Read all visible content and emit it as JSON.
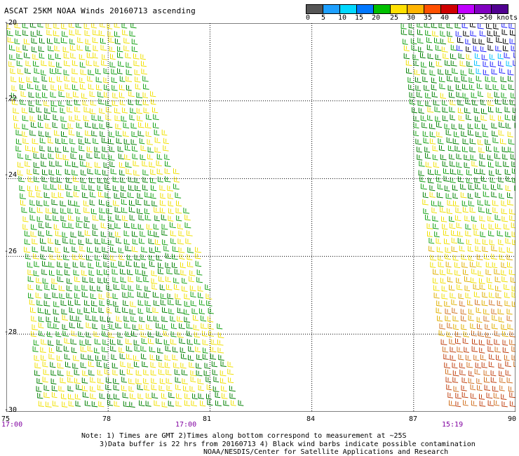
{
  "title": "ASCAT 25KM NOAA Winds 20160713 ascending",
  "legend": {
    "labels": [
      "0",
      "5",
      "10",
      "15",
      "20",
      "25",
      "30",
      "35",
      "40",
      "45",
      ">50 knots"
    ],
    "colors": [
      "#555555",
      "#1ea0ff",
      "#00d8ff",
      "#0078ff",
      "#00c000",
      "#ffe000",
      "#ffb400",
      "#ff5000",
      "#d00000",
      "#c000ff",
      "#8000c0",
      "#500090"
    ]
  },
  "map": {
    "lat_labels": [
      "-20",
      "-22",
      "-24",
      "-26",
      "-28",
      "-30"
    ],
    "lon_labels": [
      "75",
      "78",
      "81",
      "84",
      "87",
      "90"
    ],
    "time_labels": [
      "17:00",
      "17:00",
      "15:19"
    ]
  },
  "notes": {
    "line1": "Note: 1) Times are GMT 2)Times along bottom correspond to measurement at ~25S",
    "line2": "3)Data buffer is 22 hrs from 20160713 4) Black wind barbs indicate possible contamination",
    "line3": "NOAA/NESDIS/Center for Satellite Applications and Research"
  },
  "colors": {
    "green_dark": "#008000",
    "green": "#10a010",
    "yellow": "#f0e000",
    "gold": "#e0b000",
    "orange": "#d07020",
    "red_brown": "#c04010",
    "cyan": "#00c0ff",
    "blue": "#2020ff",
    "black": "#000000"
  }
}
